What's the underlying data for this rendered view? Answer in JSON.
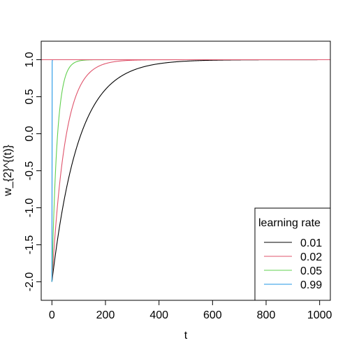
{
  "chart_data": {
    "type": "line",
    "xlabel": "t",
    "ylabel": "w_{2}^{(t)}",
    "xlim": [
      -40,
      1040
    ],
    "ylim": [
      -2.25,
      1.25
    ],
    "x_ticks": [
      0,
      200,
      400,
      600,
      800,
      1000
    ],
    "x_tick_labels": [
      "0",
      "200",
      "400",
      "600",
      "800",
      "1000"
    ],
    "y_ticks": [
      -2.0,
      -1.5,
      -1.0,
      -0.5,
      0.0,
      0.5,
      1.0
    ],
    "y_tick_labels": [
      "-2.0",
      "-1.5",
      "-1.0",
      "-0.5",
      "0.0",
      "0.5",
      "1.0"
    ],
    "reference_line": {
      "y": 1.0,
      "color": "#DF536B"
    },
    "grid": false,
    "legend": {
      "title": "learning rate",
      "position": "bottom-right"
    },
    "series": [
      {
        "name": "0.01",
        "color": "#000000",
        "x_start": 0,
        "x_end": 1000,
        "start_value": -2.0,
        "target": 1.0,
        "learning_rate": 0.01
      },
      {
        "name": "0.02",
        "color": "#DF536B",
        "x_start": 0,
        "x_end": 1000,
        "start_value": -2.0,
        "target": 1.0,
        "learning_rate": 0.02
      },
      {
        "name": "0.05",
        "color": "#61D04F",
        "x_start": 0,
        "x_end": 1000,
        "start_value": -2.0,
        "target": 1.0,
        "learning_rate": 0.05
      },
      {
        "name": "0.99",
        "color": "#2297E6",
        "x_start": 0,
        "x_end": 1000,
        "start_value": -2.0,
        "target": 1.0,
        "learning_rate": 0.99
      }
    ]
  }
}
